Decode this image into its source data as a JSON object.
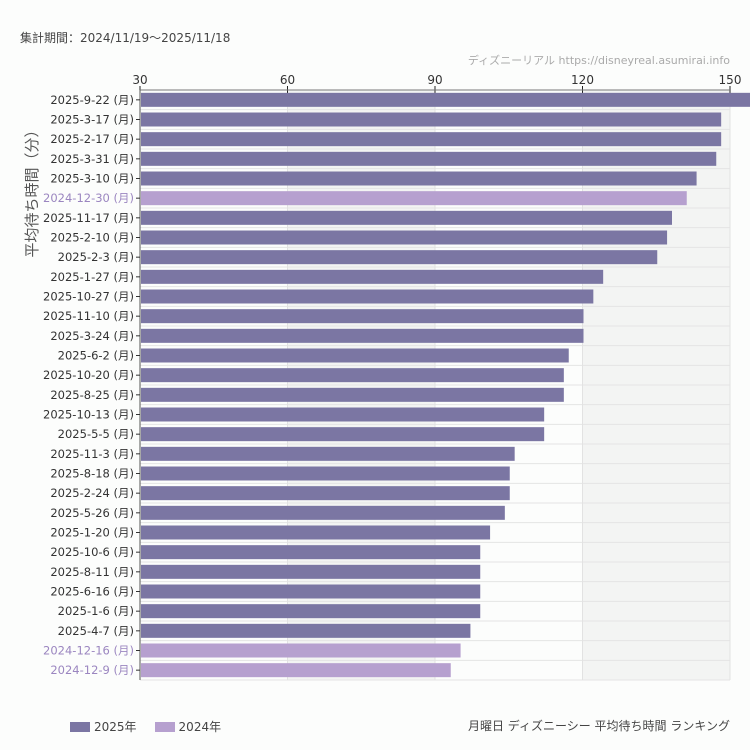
{
  "header": {
    "period": "集計期間：2024/11/19〜2025/11/18",
    "credit": "ディズニーリアル https://disneyreal.asumirai.info"
  },
  "footer": {
    "title": "月曜日 ディズニーシー 平均待ち時間 ランキング"
  },
  "chart_data": {
    "type": "bar",
    "orientation": "horizontal",
    "ylabel": "平均待ち時間（分）",
    "xlim": [
      30,
      150
    ],
    "xticks": [
      "30",
      "60",
      "90",
      "120",
      "150"
    ],
    "axis_position": "top",
    "grid": true,
    "legend_placement": "bottom-left",
    "series_colors": {
      "2025年": "#7b76a3",
      "2024年": "#b6a0cf"
    },
    "legend": [
      {
        "label": "2025年",
        "color": "#7b76a3"
      },
      {
        "label": "2024年",
        "color": "#b6a0cf"
      }
    ],
    "categories": [
      "2025-9-22 (月)",
      "2025-3-17 (月)",
      "2025-2-17 (月)",
      "2025-3-31 (月)",
      "2025-3-10 (月)",
      "2024-12-30 (月)",
      "2025-11-17 (月)",
      "2025-2-10 (月)",
      "2025-2-3 (月)",
      "2025-1-27 (月)",
      "2025-10-27 (月)",
      "2025-11-10 (月)",
      "2025-3-24 (月)",
      "2025-6-2 (月)",
      "2025-10-20 (月)",
      "2025-8-25 (月)",
      "2025-10-13 (月)",
      "2025-5-5 (月)",
      "2025-11-3 (月)",
      "2025-8-18 (月)",
      "2025-2-24 (月)",
      "2025-5-26 (月)",
      "2025-1-20 (月)",
      "2025-10-6 (月)",
      "2025-8-11 (月)",
      "2025-6-16 (月)",
      "2025-1-6 (月)",
      "2025-4-7 (月)",
      "2024-12-16 (月)",
      "2024-12-9 (月)"
    ],
    "values": [
      155,
      148,
      148,
      147,
      143,
      141,
      138,
      137,
      135,
      124,
      122,
      120,
      120,
      117,
      116,
      116,
      112,
      112,
      106,
      105,
      105,
      104,
      101,
      99,
      99,
      99,
      99,
      97,
      95,
      93
    ],
    "year_series": [
      "2025年",
      "2025年",
      "2025年",
      "2025年",
      "2025年",
      "2024年",
      "2025年",
      "2025年",
      "2025年",
      "2025年",
      "2025年",
      "2025年",
      "2025年",
      "2025年",
      "2025年",
      "2025年",
      "2025年",
      "2025年",
      "2025年",
      "2025年",
      "2025年",
      "2025年",
      "2025年",
      "2025年",
      "2025年",
      "2025年",
      "2025年",
      "2025年",
      "2024年",
      "2024年"
    ]
  }
}
